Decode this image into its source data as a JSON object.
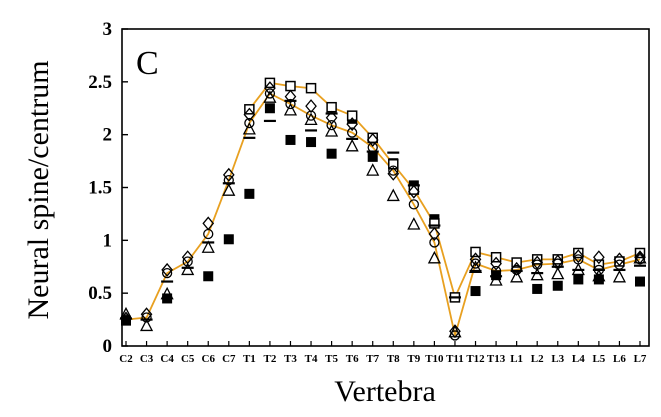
{
  "chart_data": {
    "type": "scatter",
    "panel_label": "C",
    "xlabel": "Vertebra",
    "ylabel": "Neural spine/centrum",
    "ylim": [
      0,
      3
    ],
    "yticks": [
      "0",
      "0.5",
      "1",
      "1.5",
      "2",
      "2.5",
      "3"
    ],
    "categories": [
      "C2",
      "C3",
      "C4",
      "C5",
      "C6",
      "C7",
      "T1",
      "T2",
      "T3",
      "T4",
      "T5",
      "T6",
      "T7",
      "T8",
      "T9",
      "T10",
      "T11",
      "T12",
      "T13",
      "L1",
      "L2",
      "L3",
      "L4",
      "L5",
      "L6",
      "L7"
    ],
    "grid": false,
    "series": [
      {
        "marker": "filled-square",
        "color": "#000000",
        "values": [
          0.24,
          null,
          0.45,
          null,
          0.66,
          1.01,
          1.44,
          2.25,
          1.95,
          1.93,
          1.82,
          2.15,
          1.79,
          1.73,
          1.52,
          1.2,
          null,
          0.52,
          0.67,
          null,
          0.54,
          0.57,
          0.63,
          0.63,
          null,
          0.61
        ]
      },
      {
        "marker": "open-square",
        "color": "#000000",
        "connected": true,
        "line_color": "#e8a020",
        "values": [
          null,
          null,
          null,
          null,
          null,
          null,
          2.24,
          2.49,
          2.46,
          2.44,
          2.26,
          2.18,
          1.97,
          1.72,
          1.48,
          1.16,
          0.46,
          0.89,
          0.84,
          0.79,
          0.82,
          0.82,
          0.88,
          0.77,
          0.8,
          0.88
        ]
      },
      {
        "marker": "open-diamond",
        "color": "#000000",
        "values": [
          0.26,
          0.3,
          0.72,
          0.84,
          1.16,
          1.62,
          2.19,
          2.44,
          2.36,
          2.27,
          2.16,
          2.1,
          1.95,
          1.63,
          1.46,
          1.06,
          0.14,
          0.82,
          0.78,
          0.73,
          0.79,
          0.8,
          0.85,
          0.84,
          0.82,
          0.84
        ]
      },
      {
        "marker": "open-circle",
        "color": "#000000",
        "connected": true,
        "line_color": "#e8a020",
        "values": [
          0.25,
          0.27,
          0.69,
          0.8,
          1.06,
          1.57,
          2.11,
          2.39,
          2.29,
          2.18,
          2.09,
          2.02,
          1.88,
          1.66,
          1.34,
          0.98,
          0.1,
          0.78,
          0.71,
          0.72,
          0.77,
          0.78,
          0.82,
          0.72,
          0.77,
          0.82
        ]
      },
      {
        "marker": "open-triangle",
        "color": "#000000",
        "values": [
          0.3,
          0.19,
          0.49,
          0.72,
          0.93,
          1.47,
          2.05,
          2.35,
          2.23,
          2.14,
          2.03,
          1.89,
          1.66,
          1.42,
          1.15,
          0.83,
          0.13,
          0.74,
          0.62,
          0.65,
          0.67,
          0.68,
          0.72,
          0.66,
          0.65,
          0.83
        ]
      },
      {
        "marker": "dash",
        "color": "#000000",
        "values": [
          0.26,
          0.25,
          0.61,
          0.74,
          0.98,
          1.54,
          1.97,
          2.13,
          2.32,
          2.04,
          2.2,
          1.96,
          1.84,
          1.83,
          1.52,
          1.14,
          0.46,
          0.71,
          0.66,
          0.71,
          0.69,
          0.75,
          0.72,
          0.72,
          0.72,
          0.76
        ]
      }
    ]
  }
}
